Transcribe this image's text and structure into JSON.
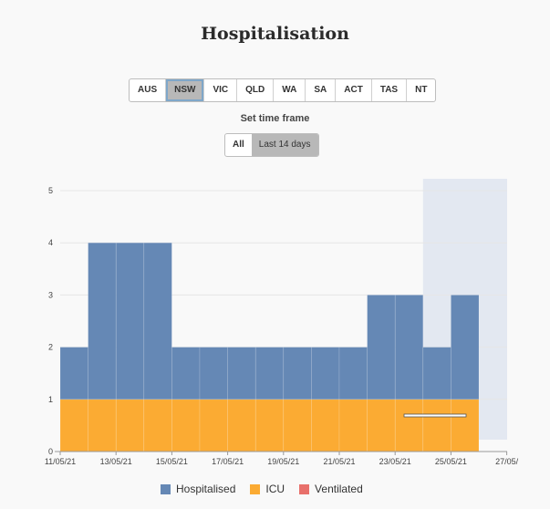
{
  "title": "Hospitalisation",
  "states": {
    "items": [
      "AUS",
      "NSW",
      "VIC",
      "QLD",
      "WA",
      "SA",
      "ACT",
      "TAS",
      "NT"
    ],
    "selected": "NSW"
  },
  "timeframe": {
    "label": "Set time frame",
    "options": [
      "All",
      "Last 14 days"
    ],
    "selected": "Last 14 days"
  },
  "colors": {
    "hospitalised": "#6588b5",
    "icu": "#fbab33",
    "ventilated": "#e8706b",
    "shade": "#e3e8f1"
  },
  "chart_data": {
    "type": "bar",
    "stacked": true,
    "x": [
      "11/05/21",
      "12/05/21",
      "13/05/21",
      "14/05/21",
      "15/05/21",
      "16/05/21",
      "17/05/21",
      "18/05/21",
      "19/05/21",
      "20/05/21",
      "21/05/21",
      "22/05/21",
      "23/05/21",
      "24/05/21",
      "25/05/21"
    ],
    "series": [
      {
        "name": "Hospitalised",
        "values": [
          1,
          3,
          3,
          3,
          1,
          1,
          1,
          1,
          1,
          1,
          1,
          2,
          2,
          1,
          2
        ]
      },
      {
        "name": "ICU",
        "values": [
          1,
          1,
          1,
          1,
          1,
          1,
          1,
          1,
          1,
          1,
          1,
          1,
          1,
          1,
          1
        ]
      },
      {
        "name": "Ventilated",
        "values": [
          0,
          0,
          0,
          0,
          0,
          0,
          0,
          0,
          0,
          0,
          0,
          0,
          0,
          0,
          0
        ]
      }
    ],
    "x_ticks": [
      "11/05/21",
      "13/05/21",
      "15/05/21",
      "17/05/21",
      "19/05/21",
      "21/05/21",
      "23/05/21",
      "25/05/21",
      "27/05/"
    ],
    "y_ticks": [
      0,
      1,
      2,
      3,
      4,
      5
    ],
    "ylim": [
      0,
      5
    ],
    "shaded_from": "24/05/21",
    "grid": true,
    "legend_position": "bottom"
  }
}
